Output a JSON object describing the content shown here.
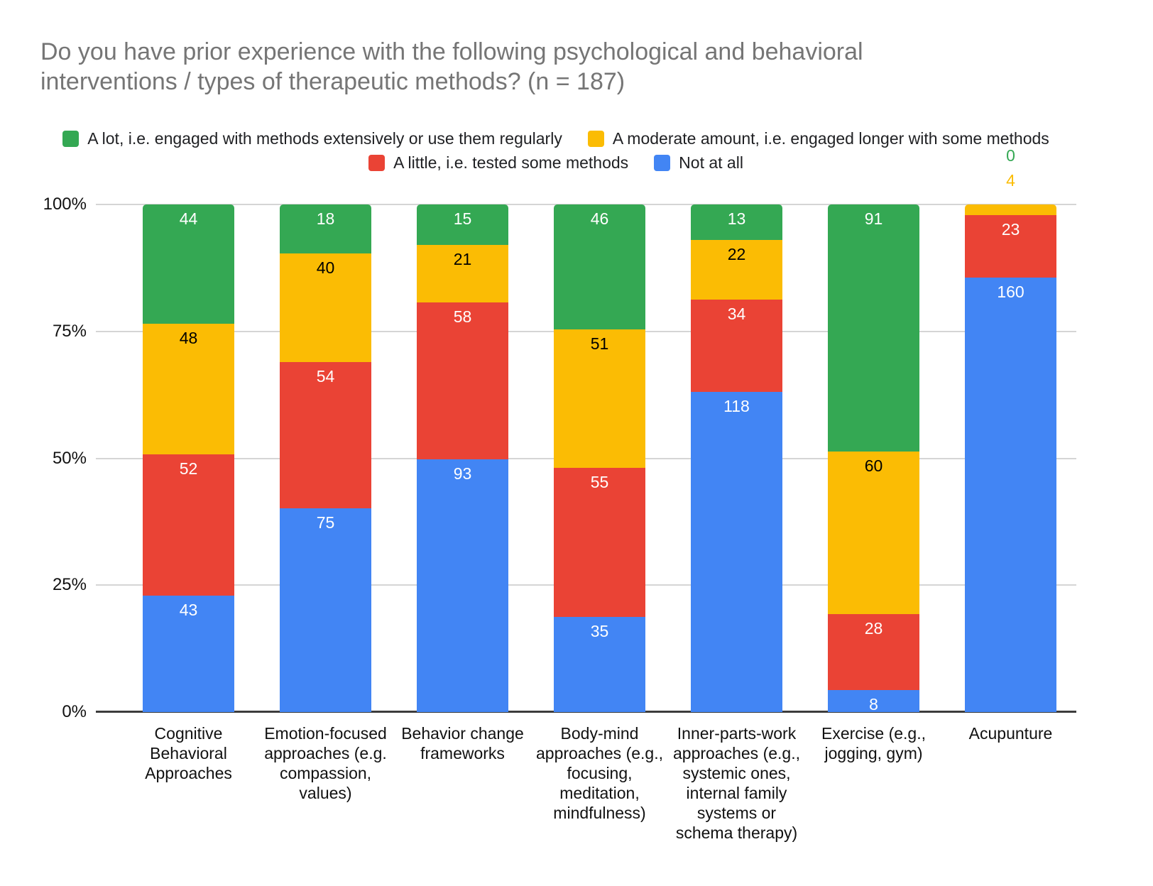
{
  "title": "Do you have prior experience with the following psychological and behavioral interventions / types of therapeutic methods? (n = 187)",
  "chart_data": {
    "type": "bar",
    "stacked": true,
    "percent_axis": true,
    "n_total": 187,
    "title": "Do you have prior experience with the following psychological and behavioral interventions / types of therapeutic methods? (n = 187)",
    "categories": [
      "Cognitive Behavioral Approaches",
      "Emotion-focused approaches (e.g. compassion, values)",
      "Behavior change frameworks",
      "Body-mind approaches (e.g., focusing, meditation, mindfulness)",
      "Inner-parts-work approaches (e.g., systemic ones, internal family systems or schema therapy)",
      "Exercise (e.g., jogging, gym)",
      "Acupunture"
    ],
    "series": [
      {
        "name": "A lot, i.e. engaged with methods extensively or use them regularly",
        "color": "#34A853",
        "label_color": "#ffffff",
        "values": [
          44,
          18,
          15,
          46,
          13,
          91,
          0
        ]
      },
      {
        "name": "A moderate amount, i.e. engaged longer with some methods",
        "color": "#FBBC04",
        "label_color": "#000000",
        "values": [
          48,
          40,
          21,
          51,
          22,
          60,
          4
        ]
      },
      {
        "name": "A little, i.e. tested some methods",
        "color": "#EA4335",
        "label_color": "#ffffff",
        "values": [
          52,
          54,
          58,
          55,
          34,
          28,
          23
        ]
      },
      {
        "name": "Not at all",
        "color": "#4285F4",
        "label_color": "#ffffff",
        "values": [
          43,
          75,
          93,
          35,
          118,
          8,
          160
        ]
      }
    ],
    "y_ticks": [
      "100%",
      "75%",
      "50%",
      "25%",
      "0%"
    ],
    "ylim": [
      0,
      100
    ],
    "grid": true,
    "legend_position": "top",
    "legend_rows": [
      [
        0,
        1
      ],
      [
        2,
        3
      ]
    ],
    "outside_labels": [
      {
        "category_index": 6,
        "series_index": 0,
        "text": "0",
        "color": "#34A853"
      },
      {
        "category_index": 6,
        "series_index": 1,
        "text": "4",
        "color": "#FBBC04"
      }
    ]
  }
}
